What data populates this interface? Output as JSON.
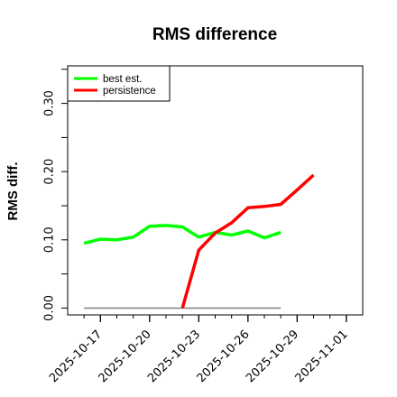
{
  "chart_data": {
    "type": "line",
    "title": "RMS difference",
    "xlabel": "",
    "ylabel": "RMS diff.",
    "ylim": [
      -0.01,
      0.355
    ],
    "xlim": [
      "2025-10-15",
      "2025-11-02"
    ],
    "yticks": [
      "0.00",
      "0.10",
      "0.20",
      "0.30"
    ],
    "xticks": [
      "2025-10-17",
      "2025-10-20",
      "2025-10-23",
      "2025-10-26",
      "2025-10-29",
      "2025-11-01"
    ],
    "legend_position": "top-left",
    "grid": false,
    "series": [
      {
        "name": "best est.",
        "color": "#00ff00",
        "x": [
          "2025-10-16",
          "2025-10-17",
          "2025-10-18",
          "2025-10-19",
          "2025-10-20",
          "2025-10-21",
          "2025-10-22",
          "2025-10-23",
          "2025-10-24",
          "2025-10-25",
          "2025-10-26",
          "2025-10-27",
          "2025-10-28"
        ],
        "y": [
          0.095,
          0.101,
          0.1,
          0.104,
          0.12,
          0.121,
          0.119,
          0.104,
          0.111,
          0.107,
          0.113,
          0.103,
          0.111
        ]
      },
      {
        "name": "persistence",
        "color": "#ff0000",
        "x": [
          "2025-10-22",
          "2025-10-23",
          "2025-10-24",
          "2025-10-25",
          "2025-10-26",
          "2025-10-27",
          "2025-10-28",
          "2025-10-29",
          "2025-10-30"
        ],
        "y": [
          0.0,
          0.085,
          0.11,
          0.125,
          0.147,
          0.149,
          0.152,
          0.173,
          0.195
        ]
      }
    ],
    "reference_line": {
      "color": "#808080",
      "x": [
        "2025-10-16",
        "2025-10-28"
      ],
      "y": [
        0.0,
        0.0
      ]
    }
  }
}
